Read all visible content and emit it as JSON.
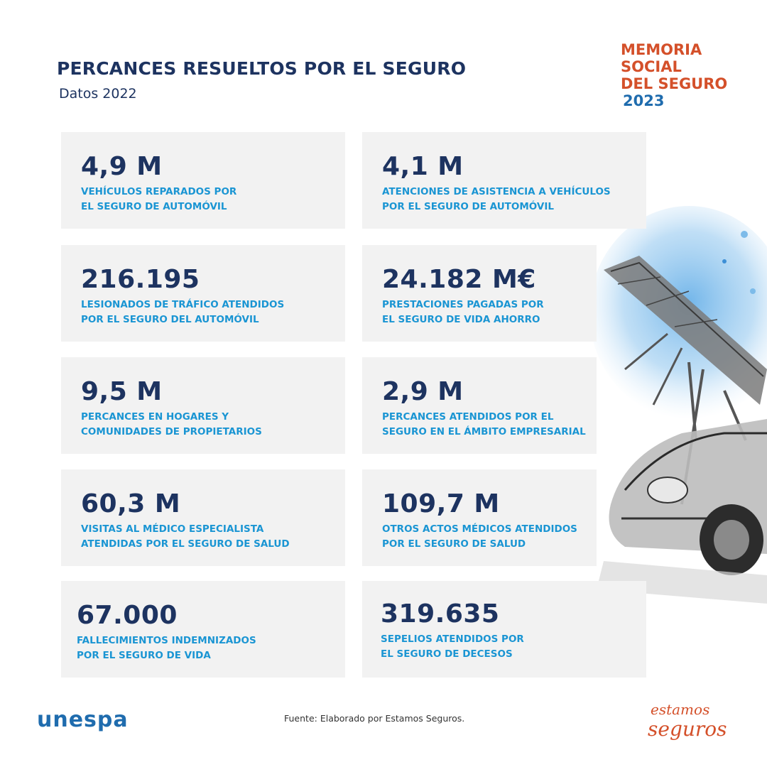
{
  "header": {
    "title": "PERCANCES RESUELTOS POR EL SEGURO",
    "subtitle": "Datos 2022"
  },
  "brand": {
    "line1": "MEMORIA",
    "line2": "SOCIAL",
    "line3": "DEL SEGURO",
    "year": "2023"
  },
  "stats": [
    {
      "value": "4,9 M",
      "line1": "VEHÍCULOS REPARADOS POR",
      "line2": "EL SEGURO DE AUTOMÓVIL"
    },
    {
      "value": "4,1 M",
      "line1": "ATENCIONES DE ASISTENCIA A VEHÍCULOS",
      "line2": "POR EL SEGURO DE AUTOMÓVIL"
    },
    {
      "value": "216.195",
      "line1": "LESIONADOS DE TRÁFICO ATENDIDOS",
      "line2": "POR EL SEGURO DEL AUTOMÓVIL"
    },
    {
      "value": "24.182 M€",
      "line1": "PRESTACIONES PAGADAS POR",
      "line2": "EL SEGURO DE VIDA AHORRO"
    },
    {
      "value": "9,5 M",
      "line1": "PERCANCES EN HOGARES Y",
      "line2": "COMUNIDADES DE PROPIETARIOS"
    },
    {
      "value": "2,9 M",
      "line1": "PERCANCES ATENDIDOS POR EL",
      "line2": "SEGURO EN EL ÁMBITO EMPRESARIAL"
    },
    {
      "value": "60,3 M",
      "line1": "VISITAS AL MÉDICO ESPECIALISTA",
      "line2": "ATENDIDAS POR EL SEGURO DE SALUD"
    },
    {
      "value": "109,7 M",
      "line1": "OTROS ACTOS MÉDICOS ATENDIDOS",
      "line2": "POR EL SEGURO DE SALUD"
    },
    {
      "value": "67.000",
      "line1": "FALLECIMIENTOS INDEMNIZADOS",
      "line2": "POR EL SEGURO DE VIDA"
    },
    {
      "value": "319.635",
      "line1": "SEPELIOS ATENDIDOS POR",
      "line2": "EL SEGURO DE DECESOS"
    }
  ],
  "footer": {
    "unespa_logo": "unespa",
    "source": "Fuente: Elaborado por Estamos Seguros.",
    "estamos_logo_line1": "estamos",
    "estamos_logo_line2": "seguros"
  },
  "colors": {
    "navy": "#1d3360",
    "blue": "#1a95d3",
    "orange": "#d4502a",
    "card_bg": "#f2f2f2"
  },
  "illustration": "tree-fallen-on-car-sketch"
}
